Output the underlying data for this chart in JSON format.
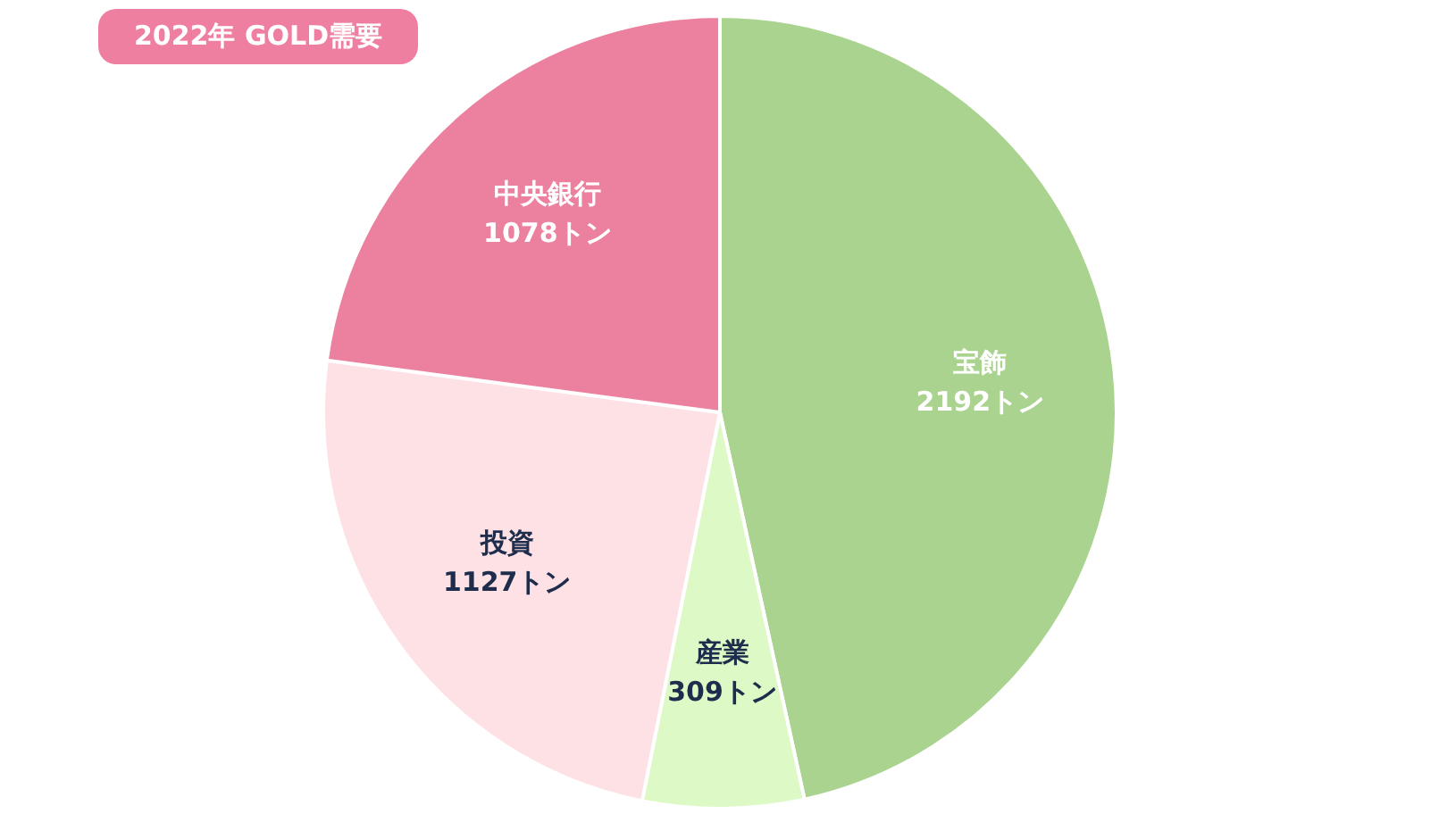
{
  "chart_data": {
    "type": "pie",
    "title": "2022年 GOLD需要",
    "categories": [
      "宝飾",
      "産業",
      "投資",
      "中央銀行"
    ],
    "values": [
      2192,
      309,
      1127,
      1078
    ],
    "value_labels": [
      "2192トン",
      "309トン",
      "1127トン",
      "1078トン"
    ],
    "colors": [
      "#a9d38e",
      "#ddf9c6",
      "#fde1e5",
      "#ec819f"
    ],
    "legend": false
  }
}
